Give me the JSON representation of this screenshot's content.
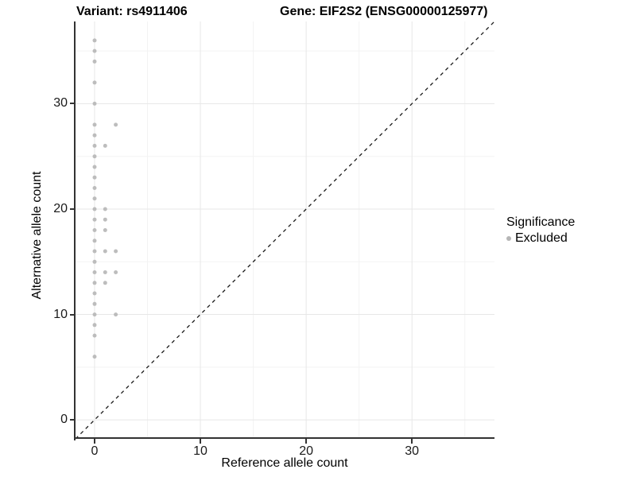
{
  "titles": {
    "variant": "Variant: rs4911406",
    "gene": "Gene: EIF2S2 (ENSG00000125977)"
  },
  "chart_data": {
    "type": "scatter",
    "title_left": "Variant: rs4911406",
    "title_right": "Gene: EIF2S2 (ENSG00000125977)",
    "xlabel": "Reference allele count",
    "ylabel": "Alternative allele count",
    "axis_range": [
      -1.8,
      37.8
    ],
    "x_tick_values": [
      0,
      10,
      20,
      30
    ],
    "y_tick_values": [
      0,
      10,
      20,
      30
    ],
    "minor_tick_values": [
      5,
      15,
      25,
      35
    ],
    "grid": true,
    "identity_line": {
      "style": "dashed",
      "slope": 1,
      "intercept": 0
    },
    "legend": {
      "title": "Significance",
      "position": "right",
      "items": [
        {
          "label": "Excluded",
          "marker": "circle",
          "color": "#b6b6b6"
        }
      ]
    },
    "series": [
      {
        "name": "Excluded",
        "color": "#b6b6b6",
        "points": [
          [
            0,
            36
          ],
          [
            0,
            35
          ],
          [
            0,
            34
          ],
          [
            0,
            32
          ],
          [
            0,
            30
          ],
          [
            0,
            28
          ],
          [
            0,
            27
          ],
          [
            0,
            26
          ],
          [
            0,
            25
          ],
          [
            0,
            24
          ],
          [
            0,
            23
          ],
          [
            0,
            22
          ],
          [
            0,
            21
          ],
          [
            0,
            20
          ],
          [
            0,
            19
          ],
          [
            0,
            18
          ],
          [
            0,
            17
          ],
          [
            0,
            16
          ],
          [
            0,
            15
          ],
          [
            0,
            14
          ],
          [
            0,
            13
          ],
          [
            0,
            12
          ],
          [
            0,
            11
          ],
          [
            0,
            10
          ],
          [
            0,
            9
          ],
          [
            0,
            8
          ],
          [
            0,
            6
          ],
          [
            1,
            26
          ],
          [
            1,
            20
          ],
          [
            1,
            19
          ],
          [
            1,
            18
          ],
          [
            1,
            16
          ],
          [
            1,
            14
          ],
          [
            1,
            13
          ],
          [
            2,
            28
          ],
          [
            2,
            16
          ],
          [
            2,
            14
          ],
          [
            2,
            10
          ]
        ]
      }
    ]
  },
  "colors": {
    "point": "#b6b6b6",
    "grid_major": "#e7e7e7",
    "grid_minor": "#f3f3f3",
    "axis_line": "#333333",
    "identity_line": "#1a1a1a",
    "text": "#000000",
    "background": "#ffffff"
  }
}
